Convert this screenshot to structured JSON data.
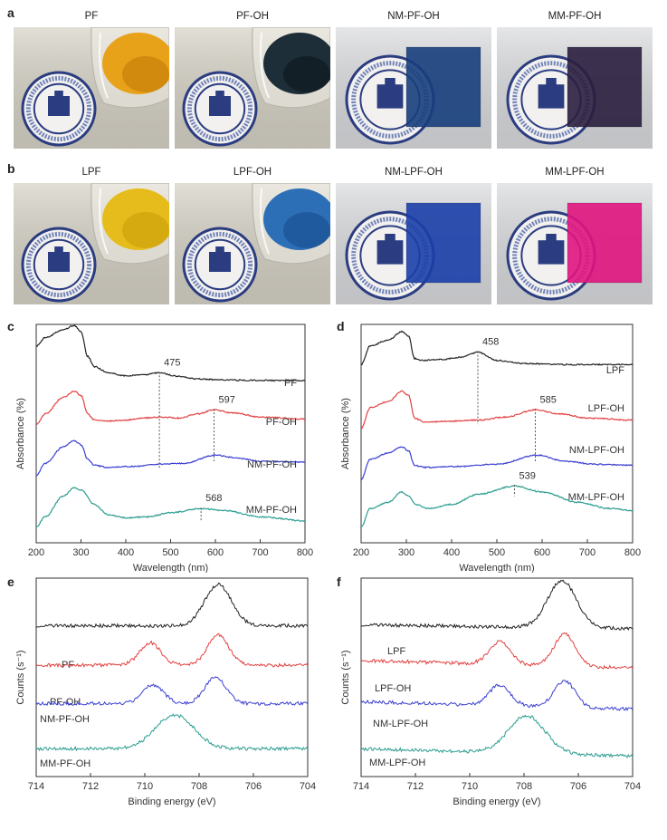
{
  "panel_letters": [
    "a",
    "b",
    "c",
    "d",
    "e",
    "f"
  ],
  "photo_rows": [
    {
      "letter": "a",
      "items": [
        {
          "label": "PF",
          "kind": "beaker",
          "liquid": "#e8a21a",
          "liquid_dark": "#c27a05"
        },
        {
          "label": "PF-OH",
          "kind": "beaker",
          "liquid": "#1d2e38",
          "liquid_dark": "#0d161c"
        },
        {
          "label": "NM-PF-OH",
          "kind": "film",
          "film": "#173e7c"
        },
        {
          "label": "MM-PF-OH",
          "kind": "film",
          "film": "#2a1e3e"
        }
      ]
    },
    {
      "letter": "b",
      "items": [
        {
          "label": "LPF",
          "kind": "beaker",
          "liquid": "#e6bc1c",
          "liquid_dark": "#c99c08"
        },
        {
          "label": "LPF-OH",
          "kind": "beaker",
          "liquid": "#2d6fb6",
          "liquid_dark": "#184c8d"
        },
        {
          "label": "NM-LPF-OH",
          "kind": "film",
          "film": "#1b3fa8"
        },
        {
          "label": "MM-LPF-OH",
          "kind": "film",
          "film": "#e0147e"
        }
      ]
    }
  ],
  "logo_text": "TIANJIN UNIVERSITY",
  "chart_data": [
    {
      "id": "c",
      "type": "line",
      "xlabel": "Wavelength (nm)",
      "ylabel": "Absorbance (%)",
      "xlim": [
        200,
        800
      ],
      "xticks": [
        "200",
        "300",
        "400",
        "500",
        "600",
        "700",
        "800"
      ],
      "series": [
        {
          "name": "PF",
          "color": "#222222",
          "peak_label": "475",
          "peak_x": 475,
          "peak_y": 0.8,
          "points": [
            [
              200,
              0.93
            ],
            [
              220,
              0.97
            ],
            [
              260,
              1.01
            ],
            [
              285,
              1.03
            ],
            [
              300,
              1.0
            ],
            [
              315,
              0.88
            ],
            [
              330,
              0.83
            ],
            [
              360,
              0.8
            ],
            [
              400,
              0.785
            ],
            [
              440,
              0.79
            ],
            [
              475,
              0.8
            ],
            [
              510,
              0.785
            ],
            [
              560,
              0.77
            ],
            [
              620,
              0.765
            ],
            [
              700,
              0.763
            ],
            [
              800,
              0.762
            ]
          ]
        },
        {
          "name": "PF-OH",
          "color": "#e34040",
          "peak_label": "597",
          "peak_x": 597,
          "peak_y": 0.62,
          "points": [
            [
              200,
              0.55
            ],
            [
              220,
              0.6
            ],
            [
              260,
              0.68
            ],
            [
              285,
              0.71
            ],
            [
              300,
              0.69
            ],
            [
              315,
              0.6
            ],
            [
              330,
              0.57
            ],
            [
              360,
              0.565
            ],
            [
              400,
              0.57
            ],
            [
              440,
              0.58
            ],
            [
              475,
              0.585
            ],
            [
              520,
              0.58
            ],
            [
              560,
              0.6
            ],
            [
              597,
              0.62
            ],
            [
              640,
              0.605
            ],
            [
              700,
              0.585
            ],
            [
              800,
              0.575
            ]
          ]
        },
        {
          "name": "NM-PF-OH",
          "color": "#3a3fd0",
          "peak_label": "",
          "peak_x": 600,
          "peak_y": 0.4,
          "points": [
            [
              200,
              0.3
            ],
            [
              220,
              0.36
            ],
            [
              260,
              0.44
            ],
            [
              285,
              0.47
            ],
            [
              300,
              0.45
            ],
            [
              315,
              0.38
            ],
            [
              330,
              0.35
            ],
            [
              360,
              0.34
            ],
            [
              420,
              0.345
            ],
            [
              475,
              0.355
            ],
            [
              530,
              0.36
            ],
            [
              600,
              0.4
            ],
            [
              650,
              0.385
            ],
            [
              700,
              0.37
            ],
            [
              800,
              0.365
            ]
          ]
        },
        {
          "name": "MM-PF-OH",
          "color": "#2a9d8f",
          "peak_label": "568",
          "peak_x": 568,
          "peak_y": 0.14,
          "points": [
            [
              200,
              0.05
            ],
            [
              220,
              0.1
            ],
            [
              260,
              0.2
            ],
            [
              285,
              0.24
            ],
            [
              300,
              0.23
            ],
            [
              330,
              0.16
            ],
            [
              360,
              0.11
            ],
            [
              400,
              0.095
            ],
            [
              450,
              0.1
            ],
            [
              500,
              0.12
            ],
            [
              568,
              0.14
            ],
            [
              620,
              0.13
            ],
            [
              700,
              0.1
            ],
            [
              800,
              0.08
            ]
          ]
        }
      ]
    },
    {
      "id": "d",
      "type": "line",
      "xlabel": "Wavelength (nm)",
      "ylabel": "Absorbance (%)",
      "xlim": [
        200,
        800
      ],
      "xticks": [
        "200",
        "300",
        "400",
        "500",
        "600",
        "700",
        "800"
      ],
      "series": [
        {
          "name": "LPF",
          "color": "#222222",
          "peak_label": "458",
          "peak_x": 458,
          "peak_y": 0.9,
          "points": [
            [
              200,
              0.84
            ],
            [
              220,
              0.93
            ],
            [
              260,
              0.96
            ],
            [
              290,
              1.0
            ],
            [
              305,
              0.98
            ],
            [
              318,
              0.87
            ],
            [
              335,
              0.86
            ],
            [
              380,
              0.865
            ],
            [
              420,
              0.875
            ],
            [
              458,
              0.9
            ],
            [
              500,
              0.86
            ],
            [
              560,
              0.845
            ],
            [
              650,
              0.84
            ],
            [
              800,
              0.84
            ]
          ]
        },
        {
          "name": "LPF-OH",
          "color": "#e34040",
          "peak_label": "585",
          "peak_x": 585,
          "peak_y": 0.62,
          "points": [
            [
              200,
              0.53
            ],
            [
              220,
              0.63
            ],
            [
              260,
              0.66
            ],
            [
              290,
              0.71
            ],
            [
              305,
              0.69
            ],
            [
              318,
              0.58
            ],
            [
              340,
              0.56
            ],
            [
              400,
              0.565
            ],
            [
              458,
              0.57
            ],
            [
              520,
              0.585
            ],
            [
              585,
              0.62
            ],
            [
              640,
              0.6
            ],
            [
              700,
              0.58
            ],
            [
              800,
              0.57
            ]
          ]
        },
        {
          "name": "NM-LPF-OH",
          "color": "#3a3fd0",
          "peak_label": "",
          "peak_x": 590,
          "peak_y": 0.4,
          "points": [
            [
              200,
              0.28
            ],
            [
              220,
              0.38
            ],
            [
              260,
              0.41
            ],
            [
              290,
              0.44
            ],
            [
              305,
              0.42
            ],
            [
              318,
              0.35
            ],
            [
              340,
              0.34
            ],
            [
              420,
              0.345
            ],
            [
              500,
              0.355
            ],
            [
              590,
              0.4
            ],
            [
              650,
              0.37
            ],
            [
              720,
              0.355
            ],
            [
              800,
              0.35
            ]
          ]
        },
        {
          "name": "MM-LPF-OH",
          "color": "#2a9d8f",
          "peak_label": "539",
          "peak_x": 539,
          "peak_y": 0.25,
          "points": [
            [
              200,
              0.05
            ],
            [
              220,
              0.14
            ],
            [
              260,
              0.17
            ],
            [
              290,
              0.22
            ],
            [
              305,
              0.2
            ],
            [
              320,
              0.16
            ],
            [
              350,
              0.14
            ],
            [
              400,
              0.16
            ],
            [
              460,
              0.21
            ],
            [
              539,
              0.25
            ],
            [
              600,
              0.22
            ],
            [
              680,
              0.17
            ],
            [
              750,
              0.14
            ],
            [
              800,
              0.13
            ]
          ]
        }
      ]
    },
    {
      "id": "e",
      "type": "line",
      "xlabel": "Binding energy (eV)",
      "ylabel": "Counts (s⁻¹)",
      "xlim": [
        714,
        704
      ],
      "xticks": [
        "714",
        "712",
        "710",
        "708",
        "706",
        "704"
      ],
      "series": [
        {
          "name": "PF",
          "color": "#222222",
          "peaks": [
            [
              707.3,
              0.22,
              0.7
            ]
          ],
          "base": 0.775,
          "slope": 0.0
        },
        {
          "name": "PF-OH",
          "color": "#e34040",
          "peaks": [
            [
              709.8,
              0.12,
              0.55
            ],
            [
              707.3,
              0.16,
              0.55
            ]
          ],
          "base": 0.565,
          "slope": 0.0
        },
        {
          "name": "NM-PF-OH",
          "color": "#3a3fd0",
          "peaks": [
            [
              709.7,
              0.1,
              0.55
            ],
            [
              707.4,
              0.14,
              0.55
            ]
          ],
          "base": 0.36,
          "slope": 0.0
        },
        {
          "name": "MM-PF-OH",
          "color": "#2a9d8f",
          "peaks": [
            [
              708.9,
              0.18,
              1.0
            ]
          ],
          "base": 0.12,
          "slope": 0.0
        }
      ]
    },
    {
      "id": "f",
      "type": "line",
      "xlabel": "Binding energy (eV)",
      "ylabel": "Counts (s⁻¹)",
      "xlim": [
        714,
        704
      ],
      "xticks": [
        "714",
        "712",
        "710",
        "708",
        "706",
        "704"
      ],
      "series": [
        {
          "name": "LPF",
          "color": "#222222",
          "peaks": [
            [
              706.6,
              0.25,
              0.75
            ]
          ],
          "base": 0.76,
          "slope": 0.002
        },
        {
          "name": "LPF-OH",
          "color": "#e34040",
          "peaks": [
            [
              708.9,
              0.12,
              0.55
            ],
            [
              706.5,
              0.17,
              0.55
            ]
          ],
          "base": 0.55,
          "slope": 0.004
        },
        {
          "name": "NM-LPF-OH",
          "color": "#3a3fd0",
          "peaks": [
            [
              708.9,
              0.11,
              0.55
            ],
            [
              706.5,
              0.14,
              0.55
            ]
          ],
          "base": 0.33,
          "slope": 0.004
        },
        {
          "name": "MM-LPF-OH",
          "color": "#2a9d8f",
          "peaks": [
            [
              707.9,
              0.2,
              0.95
            ]
          ],
          "base": 0.08,
          "slope": 0.004
        }
      ]
    }
  ]
}
